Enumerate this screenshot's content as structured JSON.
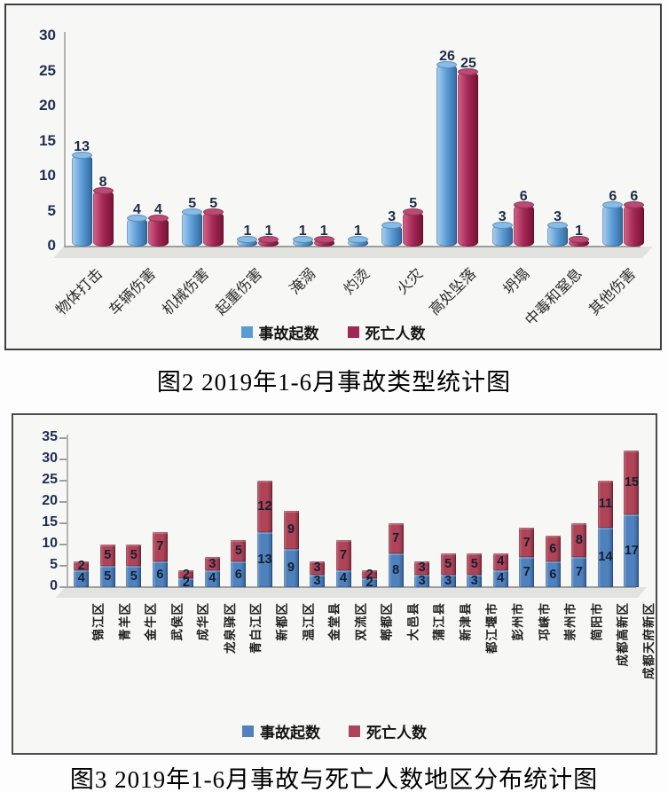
{
  "captions": {
    "fig2": "图2 2019年1-6月事故类型统计图",
    "fig3": "图3 2019年1-6月事故与死亡人数地区分布统计图"
  },
  "chart_data": [
    {
      "type": "bar",
      "title": "图2 2019年1-6月事故类型统计图",
      "categories": [
        "物体打击",
        "车辆伤害",
        "机械伤害",
        "起重伤害",
        "淹溺",
        "灼烫",
        "火灾",
        "高处坠落",
        "坍塌",
        "中毒和窒息",
        "其他伤害"
      ],
      "series": [
        {
          "name": "事故起数",
          "values": [
            13,
            4,
            5,
            1,
            1,
            1,
            3,
            26,
            3,
            3,
            6
          ],
          "fill": {
            "light": "#a9d1f0",
            "base": "#5b9bd5",
            "dark": "#31689f",
            "cap": "#86bde8"
          }
        },
        {
          "name": "死亡人数",
          "values": [
            8,
            4,
            5,
            1,
            1,
            null,
            5,
            25,
            6,
            1,
            6
          ],
          "fill": {
            "light": "#d4648b",
            "base": "#a32755",
            "dark": "#751234",
            "cap": "#bb4a74"
          }
        }
      ],
      "ylim": [
        0,
        30
      ],
      "ytick_step": 5,
      "yticks": [
        0,
        5,
        10,
        15,
        20,
        25,
        30
      ],
      "legend_position": "bottom",
      "grid": false
    },
    {
      "type": "stacked-bar",
      "title": "图3 2019年1-6月事故与死亡人数地区分布统计图",
      "categories": [
        "锦江区",
        "青羊区",
        "金牛区",
        "武侯区",
        "成华区",
        "龙泉驿区",
        "青白江区",
        "新都区",
        "温江区",
        "金堂县",
        "双流区",
        "郫都区",
        "大邑县",
        "蒲江县",
        "新津县",
        "都江堰市",
        "彭州市",
        "邛崃市",
        "崇州市",
        "简阳市",
        "成都高新区",
        "成都天府新区"
      ],
      "series": [
        {
          "name": "事故起数",
          "values": [
            4,
            5,
            5,
            6,
            2,
            4,
            6,
            13,
            9,
            3,
            4,
            2,
            8,
            3,
            3,
            3,
            4,
            7,
            6,
            7,
            14,
            17
          ],
          "fill": {
            "light": "#88aede",
            "base": "#4f81bd",
            "dark": "#2f5b94"
          }
        },
        {
          "name": "死亡人数",
          "values": [
            2,
            5,
            5,
            7,
            2,
            3,
            5,
            12,
            9,
            3,
            7,
            2,
            7,
            3,
            5,
            5,
            4,
            7,
            6,
            8,
            11,
            15
          ],
          "fill": {
            "light": "#c5707e",
            "base": "#af4458",
            "dark": "#7e2a3c"
          }
        }
      ],
      "ylim": [
        0,
        35
      ],
      "ytick_step": 5,
      "yticks": [
        0,
        5,
        10,
        15,
        20,
        25,
        30,
        35
      ],
      "legend_position": "bottom",
      "grid": false
    }
  ]
}
